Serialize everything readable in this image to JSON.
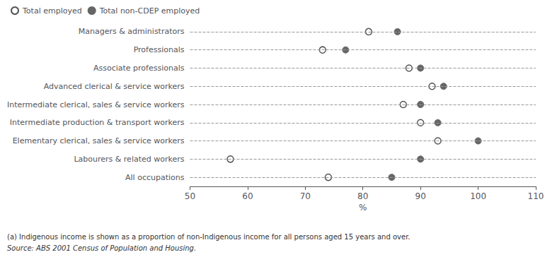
{
  "chart_data": {
    "type": "scatter",
    "orientation": "horizontal",
    "categories": [
      "Managers & administrators",
      "Professionals",
      "Associate professionals",
      "Advanced clerical & service workers",
      "Intermediate clerical, sales & service workers",
      "Intermediate production & transport workers",
      "Elementary clerical, sales & service workers",
      "Labourers & related workers",
      "All occupations"
    ],
    "series": [
      {
        "name": "Total employed",
        "color": "#555555",
        "marker": "open_circle",
        "values": [
          81,
          73,
          88,
          92,
          87,
          90,
          93,
          57,
          74
        ]
      },
      {
        "name": "Total non-CDEP employed",
        "color": "#666666",
        "marker": "circle",
        "values": [
          86,
          77,
          90,
          94,
          90,
          93,
          100,
          90,
          85
        ]
      }
    ],
    "xlim": [
      50,
      110
    ],
    "xticks": [
      50,
      60,
      70,
      80,
      90,
      100,
      110
    ],
    "xlabel": "%",
    "grid": true,
    "legend": "upper left",
    "footnote": "(a) Indigenous income is shown as a proportion of non-Indigenous income for all persons aged 15 years and over.",
    "source": "Source: ABS 2001 Census of Population and Housing."
  }
}
